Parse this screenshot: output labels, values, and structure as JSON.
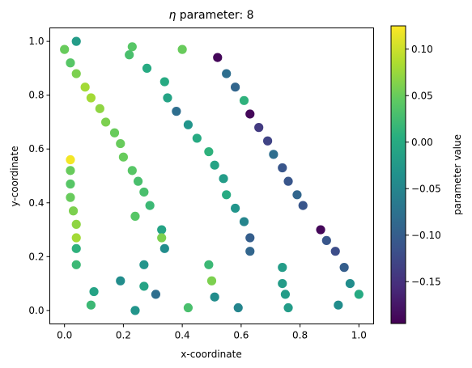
{
  "chart_data": {
    "type": "scatter",
    "title_symbol": "η",
    "title_text": " parameter: 8",
    "xlabel": "x-coordinate",
    "ylabel": "y-coordinate",
    "xlim": [
      -0.05,
      1.05
    ],
    "ylim": [
      -0.05,
      1.05
    ],
    "xticks": [
      0.0,
      0.2,
      0.4,
      0.6,
      0.8,
      1.0
    ],
    "xtick_labels": [
      "0.0",
      "0.2",
      "0.4",
      "0.6",
      "0.8",
      "1.0"
    ],
    "yticks": [
      0.0,
      0.2,
      0.4,
      0.6,
      0.8,
      1.0
    ],
    "ytick_labels": [
      "0.0",
      "0.2",
      "0.4",
      "0.6",
      "0.8",
      "1.0"
    ],
    "grid": false,
    "colormap": "viridis",
    "colorbar": {
      "label": "parameter value",
      "range": [
        -0.195,
        0.125
      ],
      "ticks": [
        0.1,
        0.05,
        0.0,
        -0.05,
        -0.1,
        -0.15
      ],
      "tick_labels": [
        "0.10",
        "0.05",
        "0.00",
        "−0.05",
        "−0.10",
        "−0.15"
      ]
    },
    "points": [
      {
        "x": 0.0,
        "y": 0.97,
        "c": 0.05
      },
      {
        "x": 0.04,
        "y": 1.0,
        "c": -0.02
      },
      {
        "x": 0.02,
        "y": 0.92,
        "c": 0.04
      },
      {
        "x": 0.04,
        "y": 0.88,
        "c": 0.06
      },
      {
        "x": 0.07,
        "y": 0.83,
        "c": 0.08
      },
      {
        "x": 0.09,
        "y": 0.79,
        "c": 0.08
      },
      {
        "x": 0.12,
        "y": 0.75,
        "c": 0.07
      },
      {
        "x": 0.14,
        "y": 0.7,
        "c": 0.06
      },
      {
        "x": 0.17,
        "y": 0.66,
        "c": 0.05
      },
      {
        "x": 0.19,
        "y": 0.62,
        "c": 0.05
      },
      {
        "x": 0.2,
        "y": 0.57,
        "c": 0.05
      },
      {
        "x": 0.23,
        "y": 0.52,
        "c": 0.04
      },
      {
        "x": 0.25,
        "y": 0.48,
        "c": 0.03
      },
      {
        "x": 0.27,
        "y": 0.44,
        "c": 0.03
      },
      {
        "x": 0.29,
        "y": 0.39,
        "c": 0.02
      },
      {
        "x": 0.24,
        "y": 0.35,
        "c": 0.04
      },
      {
        "x": 0.23,
        "y": 0.98,
        "c": 0.04
      },
      {
        "x": 0.22,
        "y": 0.95,
        "c": 0.03
      },
      {
        "x": 0.28,
        "y": 0.9,
        "c": 0.0
      },
      {
        "x": 0.34,
        "y": 0.85,
        "c": 0.0
      },
      {
        "x": 0.35,
        "y": 0.79,
        "c": -0.01
      },
      {
        "x": 0.38,
        "y": 0.74,
        "c": -0.08
      },
      {
        "x": 0.42,
        "y": 0.69,
        "c": -0.03
      },
      {
        "x": 0.45,
        "y": 0.64,
        "c": 0.0
      },
      {
        "x": 0.49,
        "y": 0.59,
        "c": 0.01
      },
      {
        "x": 0.51,
        "y": 0.54,
        "c": -0.01
      },
      {
        "x": 0.54,
        "y": 0.49,
        "c": -0.02
      },
      {
        "x": 0.55,
        "y": 0.43,
        "c": 0.0
      },
      {
        "x": 0.58,
        "y": 0.38,
        "c": -0.03
      },
      {
        "x": 0.61,
        "y": 0.33,
        "c": -0.05
      },
      {
        "x": 0.63,
        "y": 0.27,
        "c": -0.1
      },
      {
        "x": 0.63,
        "y": 0.22,
        "c": -0.09
      },
      {
        "x": 0.4,
        "y": 0.97,
        "c": 0.05
      },
      {
        "x": 0.52,
        "y": 0.94,
        "c": -0.19
      },
      {
        "x": 0.55,
        "y": 0.88,
        "c": -0.08
      },
      {
        "x": 0.58,
        "y": 0.83,
        "c": -0.09
      },
      {
        "x": 0.61,
        "y": 0.78,
        "c": 0.01
      },
      {
        "x": 0.63,
        "y": 0.73,
        "c": -0.19
      },
      {
        "x": 0.66,
        "y": 0.68,
        "c": -0.14
      },
      {
        "x": 0.69,
        "y": 0.63,
        "c": -0.13
      },
      {
        "x": 0.71,
        "y": 0.58,
        "c": -0.08
      },
      {
        "x": 0.74,
        "y": 0.53,
        "c": -0.11
      },
      {
        "x": 0.76,
        "y": 0.48,
        "c": -0.11
      },
      {
        "x": 0.79,
        "y": 0.43,
        "c": -0.09
      },
      {
        "x": 0.81,
        "y": 0.39,
        "c": -0.11
      },
      {
        "x": 0.87,
        "y": 0.3,
        "c": -0.19
      },
      {
        "x": 0.89,
        "y": 0.26,
        "c": -0.11
      },
      {
        "x": 0.92,
        "y": 0.22,
        "c": -0.12
      },
      {
        "x": 0.95,
        "y": 0.16,
        "c": -0.1
      },
      {
        "x": 0.97,
        "y": 0.1,
        "c": -0.04
      },
      {
        "x": 1.0,
        "y": 0.06,
        "c": 0.0
      },
      {
        "x": 0.02,
        "y": 0.56,
        "c": 0.12
      },
      {
        "x": 0.02,
        "y": 0.52,
        "c": 0.05
      },
      {
        "x": 0.02,
        "y": 0.47,
        "c": 0.04
      },
      {
        "x": 0.02,
        "y": 0.42,
        "c": 0.05
      },
      {
        "x": 0.03,
        "y": 0.37,
        "c": 0.06
      },
      {
        "x": 0.04,
        "y": 0.32,
        "c": 0.07
      },
      {
        "x": 0.04,
        "y": 0.27,
        "c": 0.08
      },
      {
        "x": 0.04,
        "y": 0.23,
        "c": 0.01
      },
      {
        "x": 0.04,
        "y": 0.17,
        "c": 0.02
      },
      {
        "x": 0.1,
        "y": 0.07,
        "c": -0.01
      },
      {
        "x": 0.09,
        "y": 0.02,
        "c": 0.02
      },
      {
        "x": 0.19,
        "y": 0.11,
        "c": -0.04
      },
      {
        "x": 0.24,
        "y": 0.0,
        "c": -0.03
      },
      {
        "x": 0.27,
        "y": 0.17,
        "c": -0.03
      },
      {
        "x": 0.27,
        "y": 0.09,
        "c": -0.01
      },
      {
        "x": 0.31,
        "y": 0.06,
        "c": -0.08
      },
      {
        "x": 0.33,
        "y": 0.3,
        "c": -0.01
      },
      {
        "x": 0.33,
        "y": 0.27,
        "c": 0.06
      },
      {
        "x": 0.34,
        "y": 0.23,
        "c": -0.04
      },
      {
        "x": 0.42,
        "y": 0.01,
        "c": 0.03
      },
      {
        "x": 0.49,
        "y": 0.17,
        "c": 0.02
      },
      {
        "x": 0.5,
        "y": 0.11,
        "c": 0.06
      },
      {
        "x": 0.51,
        "y": 0.05,
        "c": -0.04
      },
      {
        "x": 0.59,
        "y": 0.01,
        "c": -0.05
      },
      {
        "x": 0.74,
        "y": 0.16,
        "c": -0.02
      },
      {
        "x": 0.74,
        "y": 0.1,
        "c": -0.02
      },
      {
        "x": 0.75,
        "y": 0.06,
        "c": -0.02
      },
      {
        "x": 0.76,
        "y": 0.01,
        "c": -0.02
      },
      {
        "x": 0.93,
        "y": 0.02,
        "c": -0.04
      }
    ]
  }
}
